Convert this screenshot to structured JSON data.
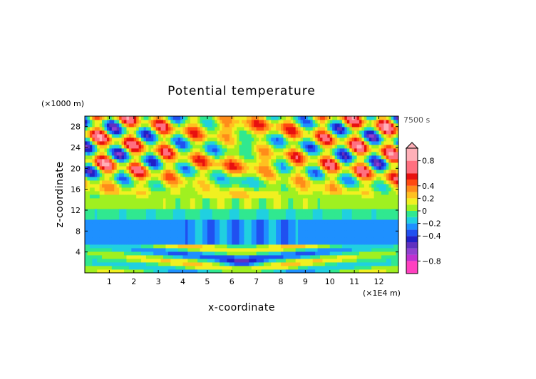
{
  "chart_data": {
    "type": "heatmap",
    "title": "Potential temperature",
    "xlabel": "x-coordinate",
    "ylabel": "z-coordinate",
    "x_unit": "(×1E4 m)",
    "y_unit": "(×1000 m)",
    "time_label": "7500 s",
    "xlim": [
      0,
      12.8
    ],
    "ylim": [
      0,
      30
    ],
    "x_ticks": [
      1,
      2,
      3,
      4,
      5,
      6,
      7,
      8,
      9,
      10,
      11,
      12
    ],
    "y_ticks": [
      4,
      8,
      12,
      16,
      20,
      24,
      28
    ],
    "colorbar": {
      "min": -1.0,
      "max": 1.0,
      "ticks": [
        0.8,
        0.4,
        0.2,
        0,
        -0.2,
        -0.4,
        -0.8
      ],
      "tick_labels": [
        "0.8",
        "0.4",
        "0.2",
        "0",
        "−0.2",
        "−0.4",
        "−0.8"
      ],
      "levels": [
        {
          "from": -1.0,
          "to": -0.8,
          "color": "#ff40c0"
        },
        {
          "from": -0.8,
          "to": -0.7,
          "color": "#c030d0"
        },
        {
          "from": -0.7,
          "to": -0.6,
          "color": "#9040d0"
        },
        {
          "from": -0.6,
          "to": -0.5,
          "color": "#6030c0"
        },
        {
          "from": -0.5,
          "to": -0.4,
          "color": "#2020c8"
        },
        {
          "from": -0.4,
          "to": -0.3,
          "color": "#2050f0"
        },
        {
          "from": -0.3,
          "to": -0.2,
          "color": "#1e90ff"
        },
        {
          "from": -0.2,
          "to": -0.1,
          "color": "#20d0e0"
        },
        {
          "from": -0.1,
          "to": 0.0,
          "color": "#30e890"
        },
        {
          "from": 0.0,
          "to": 0.1,
          "color": "#a0f020"
        },
        {
          "from": 0.1,
          "to": 0.2,
          "color": "#f0f020"
        },
        {
          "from": 0.2,
          "to": 0.3,
          "color": "#ffc020"
        },
        {
          "from": 0.3,
          "to": 0.4,
          "color": "#ff8c1a"
        },
        {
          "from": 0.4,
          "to": 0.5,
          "color": "#ff4a10"
        },
        {
          "from": 0.5,
          "to": 0.6,
          "color": "#e81010"
        },
        {
          "from": 0.6,
          "to": 0.8,
          "color": "#ff7080"
        },
        {
          "from": 0.8,
          "to": 1.0,
          "color": "#ffb0b8"
        }
      ]
    },
    "field": {
      "nx": 128,
      "nz": 44,
      "description_of_values": "potential temperature perturbation in colorbar units, approximated",
      "base_bands": [
        {
          "z_from": 0,
          "z_to": 1.5,
          "value": 0.03
        },
        {
          "z_from": 1.5,
          "z_to": 5.5,
          "value": -0.05
        },
        {
          "z_from": 5.5,
          "z_to": 10.5,
          "value": -0.25
        },
        {
          "z_from": 10.5,
          "z_to": 12.5,
          "value": -0.08
        },
        {
          "z_from": 12.5,
          "z_to": 15.0,
          "value": 0.05
        },
        {
          "z_from": 15.0,
          "z_to": 30.0,
          "value": 0.12
        }
      ]
    }
  }
}
